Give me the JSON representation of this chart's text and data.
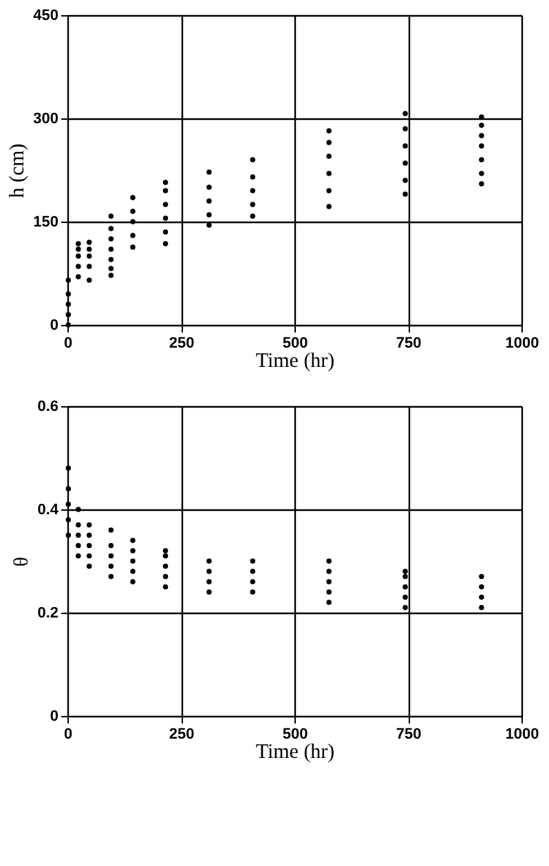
{
  "chart_data": [
    {
      "type": "scatter",
      "xlabel": "Time (hr)",
      "ylabel": "h (cm)",
      "xlim": [
        0,
        1000
      ],
      "xticks": [
        0,
        250,
        500,
        750,
        1000
      ],
      "ylim": [
        0,
        450
      ],
      "yticks": [
        0,
        150,
        300,
        450
      ],
      "grid": true,
      "marker": "circle",
      "color": "#000000",
      "x": [
        2,
        2,
        2,
        2,
        2,
        24,
        24,
        24,
        24,
        24,
        48,
        48,
        48,
        48,
        48,
        96,
        96,
        96,
        96,
        96,
        96,
        96,
        144,
        144,
        144,
        144,
        144,
        216,
        216,
        216,
        216,
        216,
        216,
        312,
        312,
        312,
        312,
        312,
        408,
        408,
        408,
        408,
        408,
        576,
        576,
        576,
        576,
        576,
        576,
        744,
        744,
        744,
        744,
        744,
        744,
        912,
        912,
        912,
        912,
        912,
        912,
        912
      ],
      "values": [
        0,
        15,
        30,
        45,
        65,
        70,
        85,
        100,
        110,
        118,
        65,
        85,
        100,
        110,
        120,
        72,
        82,
        95,
        110,
        125,
        140,
        158,
        113,
        130,
        150,
        165,
        185,
        118,
        135,
        155,
        175,
        195,
        207,
        145,
        160,
        180,
        200,
        222,
        158,
        175,
        195,
        215,
        240,
        172,
        195,
        220,
        245,
        265,
        282,
        190,
        210,
        235,
        260,
        285,
        307,
        205,
        220,
        240,
        260,
        275,
        290,
        302
      ]
    },
    {
      "type": "scatter",
      "xlabel": "Time (hr)",
      "ylabel": "θ",
      "xlim": [
        0,
        1000
      ],
      "xticks": [
        0,
        250,
        500,
        750,
        1000
      ],
      "ylim": [
        0,
        0.6
      ],
      "yticks": [
        0,
        0.2,
        0.4,
        0.6
      ],
      "grid": true,
      "marker": "circle",
      "color": "#000000",
      "x": [
        2,
        2,
        2,
        2,
        2,
        24,
        24,
        24,
        24,
        24,
        48,
        48,
        48,
        48,
        48,
        96,
        96,
        96,
        96,
        96,
        144,
        144,
        144,
        144,
        144,
        216,
        216,
        216,
        216,
        216,
        312,
        312,
        312,
        312,
        408,
        408,
        408,
        408,
        576,
        576,
        576,
        576,
        576,
        744,
        744,
        744,
        744,
        744,
        912,
        912,
        912,
        912
      ],
      "values": [
        0.35,
        0.38,
        0.41,
        0.44,
        0.48,
        0.31,
        0.33,
        0.35,
        0.37,
        0.4,
        0.29,
        0.31,
        0.33,
        0.35,
        0.37,
        0.27,
        0.29,
        0.31,
        0.33,
        0.36,
        0.26,
        0.28,
        0.3,
        0.32,
        0.34,
        0.25,
        0.27,
        0.29,
        0.31,
        0.32,
        0.24,
        0.26,
        0.28,
        0.3,
        0.24,
        0.26,
        0.28,
        0.3,
        0.22,
        0.24,
        0.26,
        0.28,
        0.3,
        0.21,
        0.23,
        0.25,
        0.27,
        0.28,
        0.21,
        0.23,
        0.25,
        0.27
      ]
    }
  ]
}
